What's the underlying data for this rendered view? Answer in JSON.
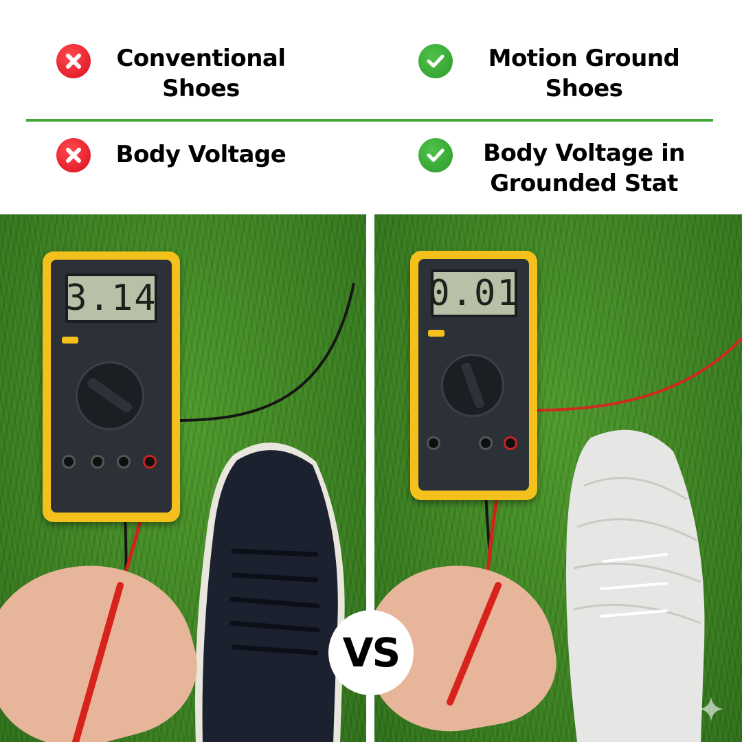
{
  "header": {
    "left_title": "Conventional Shoes",
    "right_title": "Motion Ground Shoes",
    "left_row": "Body Voltage",
    "right_row": "Body Voltage in Grounded Stat",
    "bad_icon": "x-circle-icon",
    "good_icon": "check-circle-icon",
    "bad_color": "#e0151f",
    "good_color": "#36a834",
    "rule_color": "#3fa535"
  },
  "left_photo": {
    "meter_reading": "3.14"
  },
  "right_photo": {
    "meter_reading": "0.01"
  },
  "badge": {
    "label": "VS"
  }
}
